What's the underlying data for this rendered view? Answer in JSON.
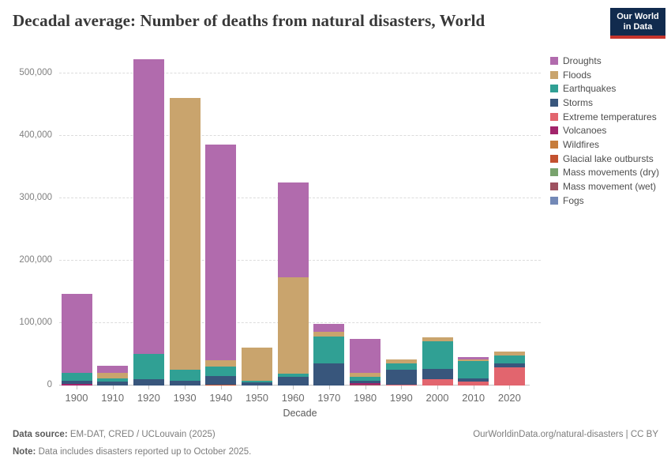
{
  "header": {
    "logo": {
      "line1": "Our World",
      "line2": "in Data"
    }
  },
  "chart_data": {
    "type": "bar",
    "stacked": true,
    "title": "Decadal average: Number of deaths from natural disasters, World",
    "xlabel": "Decade",
    "ylabel": "",
    "categories": [
      "1900",
      "1910",
      "1920",
      "1930",
      "1940",
      "1950",
      "1960",
      "1970",
      "1980",
      "1990",
      "2000",
      "2010",
      "2020"
    ],
    "y_ticks": [
      0,
      100000,
      200000,
      300000,
      400000,
      500000
    ],
    "ylim": [
      0,
      541000
    ],
    "grid": "horizontal-dashed",
    "legend_position": "right",
    "stack_order": "last series at bottom, first series (Droughts) on top",
    "series": [
      {
        "name": "Droughts",
        "color": "#b16bad",
        "values": [
          126200,
          10600,
          472800,
          0,
          345200,
          0,
          151600,
          12600,
          54800,
          0,
          0,
          3100,
          0
        ]
      },
      {
        "name": "Floods",
        "color": "#c9a46d",
        "values": [
          0,
          9600,
          0,
          436400,
          10100,
          52800,
          154900,
          7200,
          5900,
          6400,
          6400,
          2500,
          6300
        ]
      },
      {
        "name": "Earthquakes",
        "color": "#30a094",
        "values": [
          13400,
          4300,
          40100,
          17000,
          14800,
          2900,
          5000,
          43500,
          5800,
          10500,
          44300,
          28600,
          12700
        ]
      },
      {
        "name": "Storms",
        "color": "#38567c",
        "values": [
          4300,
          6700,
          10100,
          8000,
          13900,
          5100,
          14000,
          35400,
          4600,
          23200,
          16800,
          4300,
          6300
        ]
      },
      {
        "name": "Extreme temperatures",
        "color": "#e2656e",
        "values": [
          0,
          0,
          0,
          0,
          0,
          0,
          0,
          0,
          0,
          1700,
          10100,
          6700,
          29100
        ]
      },
      {
        "name": "Volcanoes",
        "color": "#a2246b",
        "values": [
          2900,
          0,
          0,
          0,
          0,
          0,
          0,
          0,
          2400,
          0,
          0,
          0,
          0
        ]
      },
      {
        "name": "Wildfires",
        "color": "#c67c3c",
        "values": [
          0,
          0,
          0,
          0,
          0,
          0,
          0,
          0,
          0,
          0,
          0,
          0,
          0
        ]
      },
      {
        "name": "Glacial lake outbursts",
        "color": "#c3512f",
        "values": [
          0,
          0,
          0,
          0,
          1600,
          0,
          0,
          0,
          0,
          0,
          0,
          0,
          0
        ]
      },
      {
        "name": "Mass movements (dry)",
        "color": "#79a36d",
        "values": [
          0,
          0,
          0,
          0,
          0,
          0,
          0,
          0,
          0,
          0,
          0,
          0,
          0
        ]
      },
      {
        "name": "Mass movement (wet)",
        "color": "#9e5260",
        "values": [
          0,
          0,
          0,
          0,
          0,
          0,
          0,
          0,
          1200,
          0,
          0,
          0,
          0
        ]
      },
      {
        "name": "Fogs",
        "color": "#7389b7",
        "values": [
          0,
          0,
          0,
          0,
          0,
          0,
          0,
          0,
          0,
          0,
          0,
          0,
          0
        ]
      }
    ],
    "decade_totals": [
      146800,
      31200,
      523000,
      461400,
      385600,
      60800,
      325500,
      98700,
      74700,
      41800,
      77600,
      45200,
      54400
    ]
  },
  "footer": {
    "datasource_label": "Data source:",
    "datasource_text": " EM-DAT, CRED / UCLouvain (2025)",
    "note_label": "Note:",
    "note_text": " Data includes disasters reported up to October 2025.",
    "link": "OurWorldinData.org/natural-disasters | CC BY"
  }
}
